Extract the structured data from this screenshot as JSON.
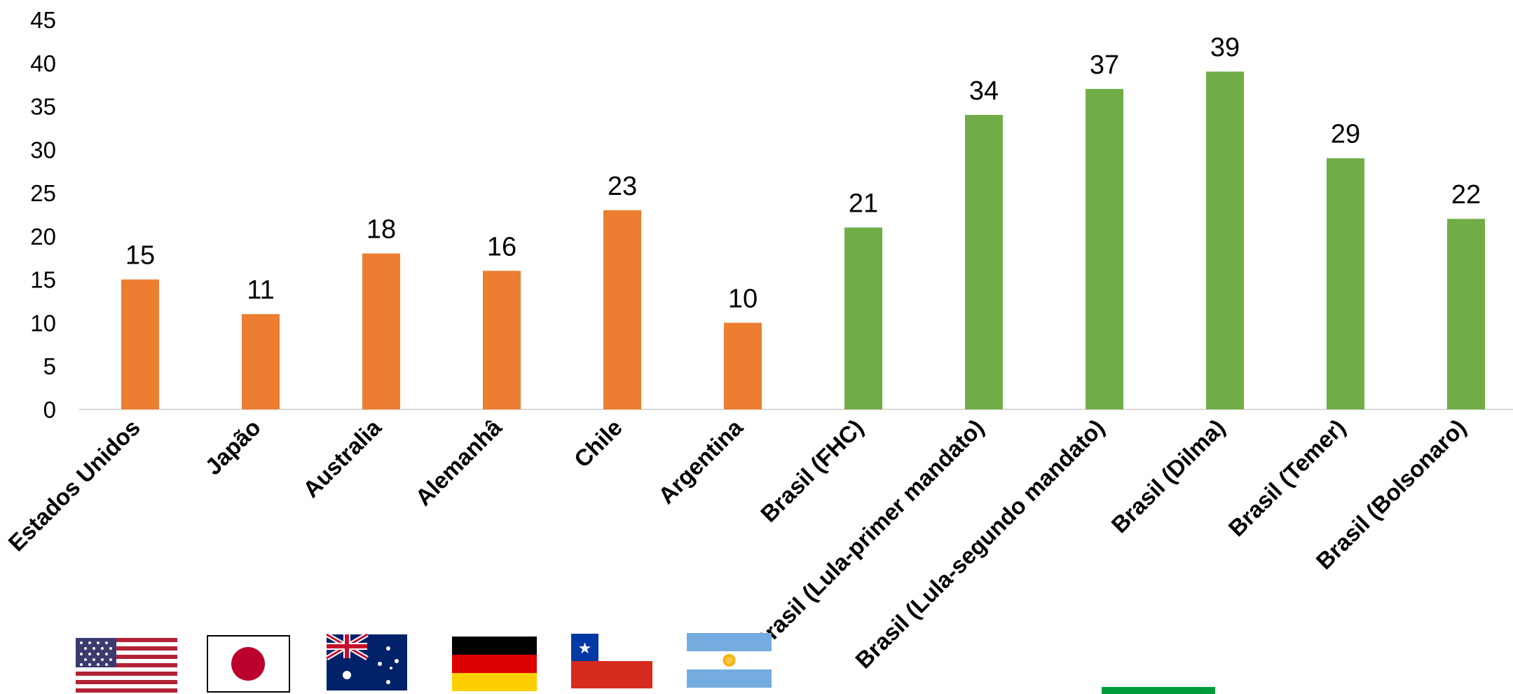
{
  "chart_data": {
    "type": "bar",
    "categories": [
      "Estados Unidos",
      "Japão",
      "Australia",
      "Alemanhâ",
      "Chile",
      "Argentina",
      "Brasil (FHC)",
      "Brasil (Lula-primer mandato)",
      "Brasil (Lula-segundo mandato)",
      "Brasil (Dilma)",
      "Brasil (Temer)",
      "Brasil (Bolsonaro)"
    ],
    "values": [
      15,
      11,
      18,
      16,
      23,
      10,
      21,
      34,
      37,
      39,
      29,
      22
    ],
    "colors": [
      "#ED7D31",
      "#ED7D31",
      "#ED7D31",
      "#ED7D31",
      "#ED7D31",
      "#ED7D31",
      "#70AD47",
      "#70AD47",
      "#70AD47",
      "#70AD47",
      "#70AD47",
      "#70AD47"
    ],
    "title": "",
    "xlabel": "",
    "ylabel": "",
    "ylim": [
      0,
      45
    ],
    "yticks": [
      0,
      5,
      10,
      15,
      20,
      25,
      30,
      35,
      40,
      45
    ],
    "grid": false,
    "legend": "none",
    "data_labels": true
  },
  "flags": [
    {
      "country": "Estados Unidos",
      "icon": "usa-flag-icon"
    },
    {
      "country": "Japão",
      "icon": "japan-flag-icon"
    },
    {
      "country": "Australia",
      "icon": "australia-flag-icon"
    },
    {
      "country": "Alemanhâ",
      "icon": "germany-flag-icon"
    },
    {
      "country": "Chile",
      "icon": "chile-flag-icon"
    },
    {
      "country": "Argentina",
      "icon": "argentina-flag-icon"
    },
    {
      "country": "Brasil",
      "icon": "brazil-flag-icon"
    }
  ]
}
